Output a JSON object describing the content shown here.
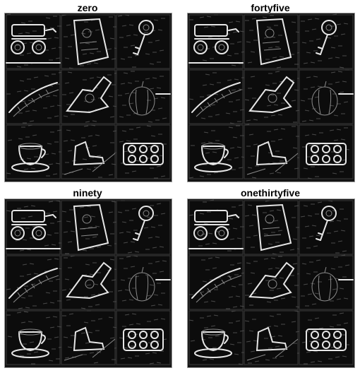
{
  "panels": [
    {
      "title": "zero"
    },
    {
      "title": "fortyfive"
    },
    {
      "title": "ninety"
    },
    {
      "title": "onethirtyfive"
    }
  ]
}
